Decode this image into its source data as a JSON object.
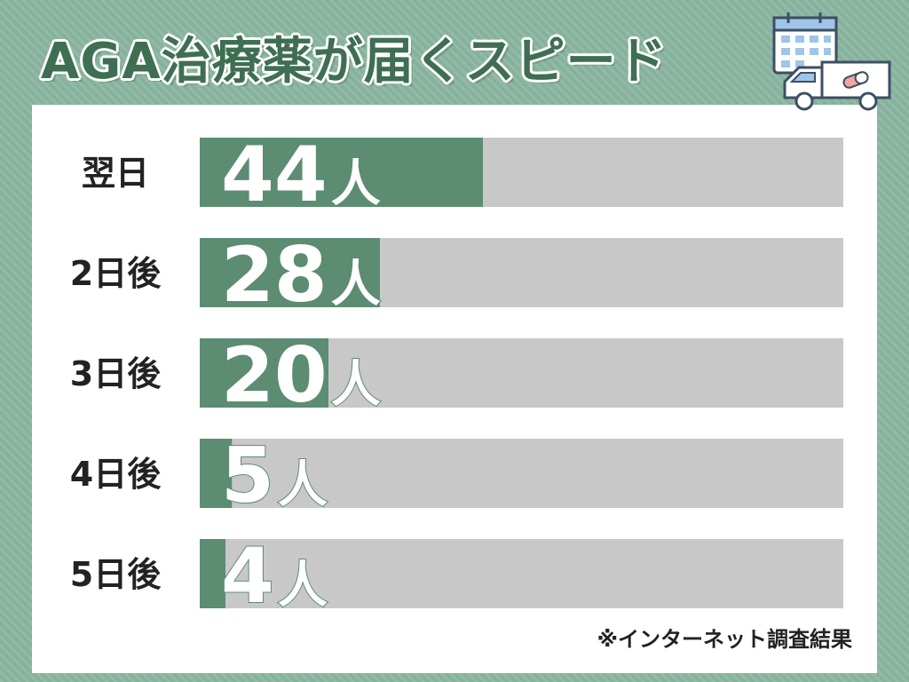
{
  "title": "AGA治療薬が届くスピード",
  "source_note": "※インターネット調査結果",
  "unit": "人",
  "colors": {
    "background": "#86b29d",
    "bar_fill": "#5c8c72",
    "bar_track": "#c8c8c8",
    "title": "#3f6e52",
    "label": "#222222",
    "value_text": "#ffffff"
  },
  "icons": [
    "calendar-icon",
    "delivery-truck-icon",
    "pill-icon"
  ],
  "chart_data": {
    "type": "bar",
    "orientation": "horizontal",
    "categories": [
      "翌日",
      "2日後",
      "3日後",
      "4日後",
      "5日後"
    ],
    "values": [
      44,
      28,
      20,
      5,
      4
    ],
    "data_labels": [
      "44",
      "28",
      "20",
      "5",
      "4"
    ],
    "unit": "人",
    "xlim": [
      0,
      100
    ],
    "title": "AGA治療薬が届くスピード",
    "xlabel": "",
    "ylabel": "",
    "grid": false,
    "legend": "none"
  }
}
